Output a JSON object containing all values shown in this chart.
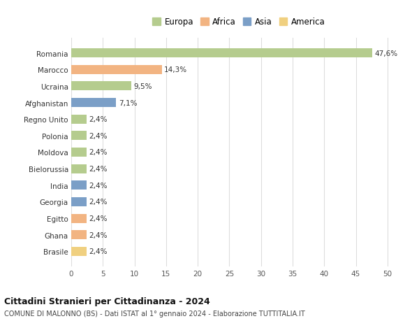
{
  "categories": [
    "Brasile",
    "Ghana",
    "Egitto",
    "Georgia",
    "India",
    "Bielorussia",
    "Moldova",
    "Polonia",
    "Regno Unito",
    "Afghanistan",
    "Ucraina",
    "Marocco",
    "Romania"
  ],
  "values": [
    2.4,
    2.4,
    2.4,
    2.4,
    2.4,
    2.4,
    2.4,
    2.4,
    2.4,
    7.1,
    9.5,
    14.3,
    47.6
  ],
  "labels": [
    "2,4%",
    "2,4%",
    "2,4%",
    "2,4%",
    "2,4%",
    "2,4%",
    "2,4%",
    "2,4%",
    "2,4%",
    "7,1%",
    "9,5%",
    "14,3%",
    "47,6%"
  ],
  "continents": [
    "America",
    "Africa",
    "Africa",
    "Asia",
    "Asia",
    "Europa",
    "Europa",
    "Europa",
    "Europa",
    "Asia",
    "Europa",
    "Africa",
    "Europa"
  ],
  "continent_colors": {
    "Europa": "#b5cc8e",
    "Africa": "#f2b482",
    "Asia": "#7b9fc7",
    "America": "#f0d080"
  },
  "legend_entries": [
    "Europa",
    "Africa",
    "Asia",
    "America"
  ],
  "legend_colors": [
    "#b5cc8e",
    "#f2b482",
    "#7b9fc7",
    "#f0d080"
  ],
  "title1": "Cittadini Stranieri per Cittadinanza - 2024",
  "title2": "COMUNE DI MALONNO (BS) - Dati ISTAT al 1° gennaio 2024 - Elaborazione TUTTITALIA.IT",
  "xlim": [
    0,
    53
  ],
  "xticks": [
    0,
    5,
    10,
    15,
    20,
    25,
    30,
    35,
    40,
    45,
    50
  ],
  "background_color": "#ffffff",
  "grid_color": "#dddddd"
}
